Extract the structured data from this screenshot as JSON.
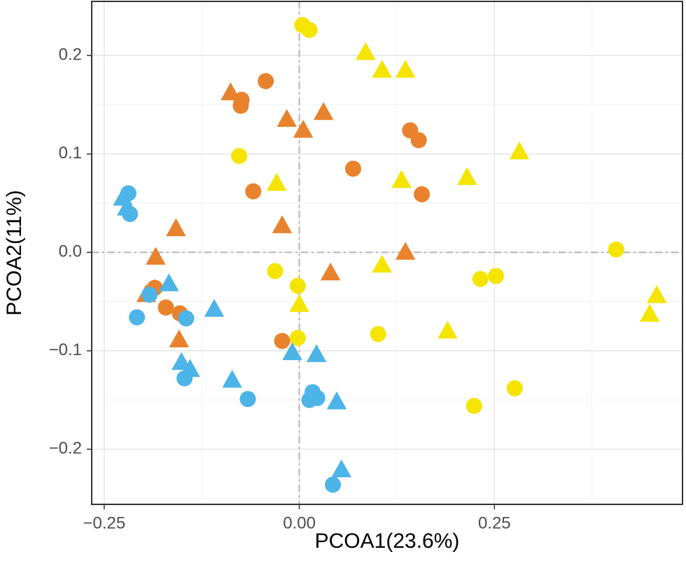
{
  "chart_data": {
    "type": "scatter",
    "xlabel": "PCOA1(23.6%)",
    "ylabel": "PCOA2(11%)",
    "xlim": [
      -0.266,
      0.491
    ],
    "ylim": [
      -0.256,
      0.255
    ],
    "xticks": [
      {
        "value": -0.25,
        "label": "−0.25"
      },
      {
        "value": 0,
        "label": "0.00"
      },
      {
        "value": 0.25,
        "label": "0.25"
      }
    ],
    "yticks": [
      {
        "value": -0.2,
        "label": "−0.2"
      },
      {
        "value": -0.1,
        "label": "−0.1"
      },
      {
        "value": 0,
        "label": "0.0"
      },
      {
        "value": 0.1,
        "label": "0.1"
      },
      {
        "value": 0.2,
        "label": "0.2"
      }
    ],
    "xminor": [
      -0.125,
      0.125,
      0.375
    ],
    "yminor": [
      -0.25,
      -0.15,
      -0.05,
      0.05,
      0.15,
      0.25
    ],
    "grid": true,
    "zero_lines": true,
    "series": [
      {
        "color": "#f5e400",
        "marker": "circle",
        "x": [
          0.004,
          0.013,
          -0.077,
          -0.031,
          -0.002,
          -0.002,
          0.101,
          0.232,
          0.252,
          0.406,
          0.224,
          0.276
        ],
        "values": [
          0.231,
          0.226,
          0.098,
          -0.019,
          -0.034,
          -0.087,
          -0.083,
          -0.027,
          -0.024,
          0.003,
          -0.156,
          -0.138
        ]
      },
      {
        "color": "#f5e400",
        "marker": "triangle",
        "x": [
          0.085,
          0.106,
          0.136,
          0.282,
          -0.029,
          0.131,
          0.215,
          0.106,
          0.0,
          0.19,
          0.458,
          0.449
        ],
        "values": [
          0.203,
          0.185,
          0.185,
          0.102,
          0.07,
          0.073,
          0.076,
          -0.013,
          -0.053,
          -0.08,
          -0.044,
          -0.063
        ]
      },
      {
        "color": "#e8822c",
        "marker": "circle",
        "x": [
          -0.043,
          -0.074,
          -0.075,
          0.142,
          0.153,
          0.069,
          -0.059,
          0.157,
          -0.171,
          -0.153,
          -0.185,
          -0.022
        ],
        "values": [
          0.174,
          0.155,
          0.149,
          0.124,
          0.114,
          0.085,
          0.062,
          0.059,
          -0.056,
          -0.062,
          -0.036,
          -0.09
        ]
      },
      {
        "color": "#e8822c",
        "marker": "triangle",
        "x": [
          -0.088,
          -0.016,
          0.005,
          0.031,
          -0.022,
          -0.158,
          -0.184,
          0.136,
          0.04,
          -0.154,
          -0.196
        ],
        "values": [
          0.162,
          0.135,
          0.124,
          0.142,
          0.027,
          0.024,
          -0.005,
          0.0,
          -0.021,
          -0.089,
          -0.043
        ]
      },
      {
        "color": "#4cb4e7",
        "marker": "circle",
        "x": [
          -0.219,
          -0.217,
          -0.208,
          -0.192,
          -0.145,
          -0.147,
          -0.066,
          0.017,
          0.013,
          0.023,
          0.043
        ],
        "values": [
          0.06,
          0.039,
          -0.066,
          -0.043,
          -0.067,
          -0.128,
          -0.149,
          -0.142,
          -0.15,
          -0.148,
          -0.236
        ]
      },
      {
        "color": "#4cb4e7",
        "marker": "triangle",
        "x": [
          -0.226,
          -0.221,
          -0.167,
          -0.109,
          -0.151,
          -0.14,
          -0.086,
          -0.009,
          0.022,
          0.048,
          0.054
        ],
        "values": [
          0.055,
          0.045,
          -0.032,
          -0.058,
          -0.112,
          -0.119,
          -0.13,
          -0.102,
          -0.104,
          -0.152,
          -0.221
        ]
      }
    ]
  }
}
